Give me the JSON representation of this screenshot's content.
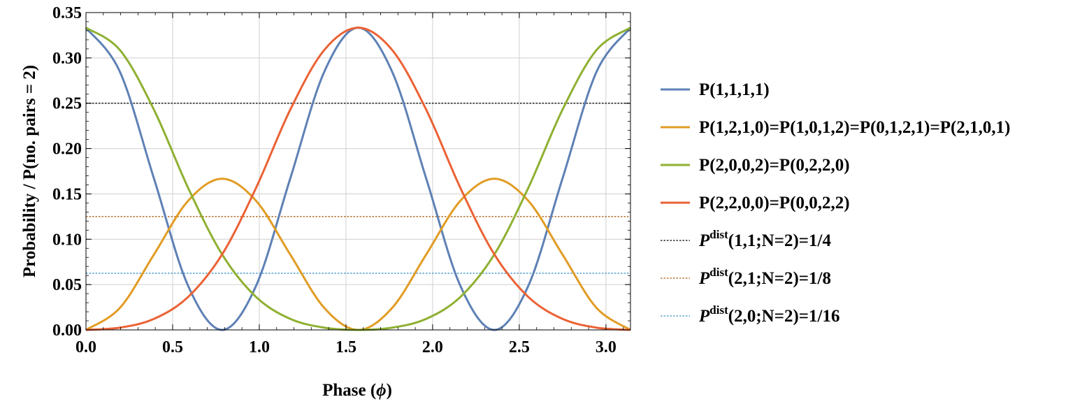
{
  "chart_data": {
    "type": "line",
    "title": "",
    "xlabel": "Phase (",
    "xlabel_symbol": "ϕ",
    "xlabel_close": ")",
    "ylabel": "Probability / P(no. pairs = 2)",
    "xlim": [
      0,
      3.14159
    ],
    "ylim": [
      0,
      0.35
    ],
    "xticks": [
      0.0,
      0.5,
      1.0,
      1.5,
      2.0,
      2.5,
      3.0
    ],
    "xtick_labels": [
      "0.0",
      "0.5",
      "1.0",
      "1.5",
      "2.0",
      "2.5",
      "3.0"
    ],
    "yticks": [
      0.0,
      0.05,
      0.1,
      0.15,
      0.2,
      0.25,
      0.3,
      0.35
    ],
    "ytick_labels": [
      "0.00",
      "0.05",
      "0.10",
      "0.15",
      "0.20",
      "0.25",
      "0.30",
      "0.35"
    ],
    "grid": true,
    "legend_position": "right",
    "series": [
      {
        "name": "P(1,1,1,1)",
        "color": "#5E81B5",
        "style": "solid",
        "x": [
          0,
          0.1963,
          0.3927,
          0.589,
          0.7854,
          0.9817,
          1.1781,
          1.3744,
          1.5708,
          1.7671,
          1.9635,
          2.1598,
          2.3562,
          2.5525,
          2.7489,
          2.9452,
          3.1416
        ],
        "values": [
          0.3333,
          0.2845,
          0.1667,
          0.0488,
          0.0,
          0.0488,
          0.1667,
          0.2845,
          0.3333,
          0.2845,
          0.1667,
          0.0488,
          0.0,
          0.0488,
          0.1667,
          0.2845,
          0.3333
        ]
      },
      {
        "name": "P(1,2,1,0)=P(1,0,1,2)=P(0,1,2,1)=P(2,1,0,1)",
        "color": "#E19C24",
        "style": "solid",
        "x": [
          0,
          0.1963,
          0.3927,
          0.589,
          0.7854,
          0.9817,
          1.1781,
          1.3744,
          1.5708,
          1.7671,
          1.9635,
          2.1598,
          2.3562,
          2.5525,
          2.7489,
          2.9452,
          3.1416
        ],
        "values": [
          0.0,
          0.0244,
          0.0833,
          0.1423,
          0.1667,
          0.1423,
          0.0833,
          0.0244,
          0.0,
          0.0244,
          0.0833,
          0.1423,
          0.1667,
          0.1423,
          0.0833,
          0.0244,
          0.0
        ]
      },
      {
        "name": "P(2,0,0,2)=P(0,2,2,0)",
        "color": "#8FB032",
        "style": "solid",
        "x": [
          0,
          0.1963,
          0.3927,
          0.589,
          0.7854,
          0.9817,
          1.1781,
          1.3744,
          1.5708,
          1.7671,
          1.9635,
          2.1598,
          2.3562,
          2.5525,
          2.7489,
          2.9452,
          3.1416
        ],
        "values": [
          0.3333,
          0.3086,
          0.2427,
          0.1568,
          0.0833,
          0.0363,
          0.0122,
          0.0025,
          0.0,
          0.0025,
          0.0122,
          0.0363,
          0.0833,
          0.1568,
          0.2427,
          0.3086,
          0.3333
        ]
      },
      {
        "name": "P(2,2,0,0)=P(0,0,2,2)",
        "color": "#EB6235",
        "style": "solid",
        "x": [
          0,
          0.1963,
          0.3927,
          0.589,
          0.7854,
          0.9817,
          1.1781,
          1.3744,
          1.5708,
          1.7671,
          1.9635,
          2.1598,
          2.3562,
          2.5525,
          2.7489,
          2.9452,
          3.1416
        ],
        "values": [
          0.0,
          0.0025,
          0.0122,
          0.0363,
          0.0833,
          0.1568,
          0.2427,
          0.3086,
          0.3333,
          0.3086,
          0.2427,
          0.1568,
          0.0833,
          0.0363,
          0.0122,
          0.0025,
          0.0
        ]
      },
      {
        "name_prefix": "P",
        "name_sup": "dist",
        "name_rest": "(1,1;N=2)=1/4",
        "color": "#2B2B2B",
        "style": "dotted",
        "x": [
          0,
          3.1416
        ],
        "values": [
          0.25,
          0.25
        ]
      },
      {
        "name_prefix": "P",
        "name_sup": "dist",
        "name_rest": "(2,1;N=2)=1/8",
        "color": "#B97A3A",
        "style": "dotted",
        "x": [
          0,
          3.1416
        ],
        "values": [
          0.125,
          0.125
        ]
      },
      {
        "name_prefix": "P",
        "name_sup": "dist",
        "name_rest": "(2,0;N=2)=1/16",
        "color": "#5FA7D1",
        "style": "dotted",
        "x": [
          0,
          3.1416
        ],
        "values": [
          0.0625,
          0.0625
        ]
      }
    ]
  }
}
